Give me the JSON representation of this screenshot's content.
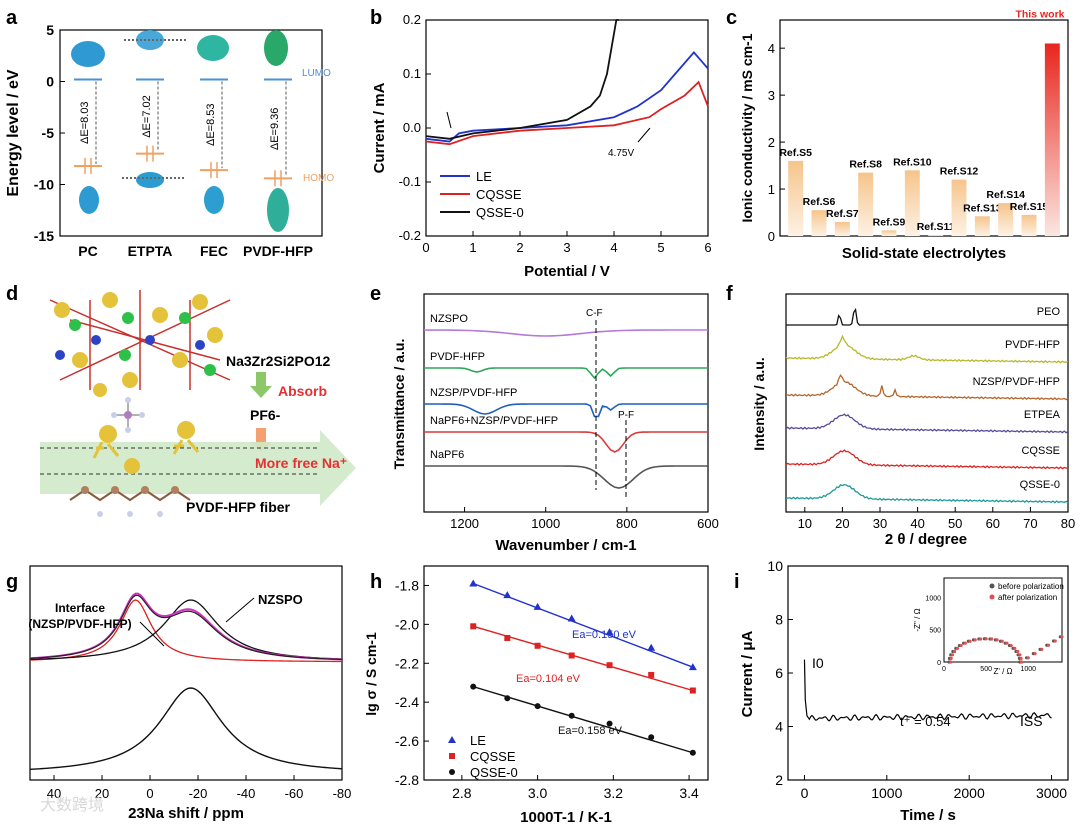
{
  "panels": {
    "a": "a",
    "b": "b",
    "c": "c",
    "d": "d",
    "e": "e",
    "f": "f",
    "g": "g",
    "h": "h",
    "i": "i"
  },
  "colors": {
    "lumo": "#4a8fd8",
    "homo": "#f0a060",
    "le": "#2233cc",
    "cqsse": "#dd2222",
    "qsse": "#111111",
    "bar": "#f6c48c",
    "bar_top": "#e8261e"
  },
  "chart_data": [
    {
      "panel": "a",
      "type": "scatter",
      "ylabel": "Energy level / eV",
      "ylim": [
        -15,
        5
      ],
      "yticks": [
        "5",
        "0",
        "-5",
        "-10",
        "-15"
      ],
      "categories": [
        "PC",
        "ETPTA",
        "FEC",
        "PVDF-HFP"
      ],
      "lumo": [
        0.2,
        0.2,
        0.2,
        0.2
      ],
      "homo": [
        -8.2,
        -7.0,
        -8.6,
        -9.4
      ],
      "gaps": [
        "ΔE=8.03",
        "ΔE=7.02",
        "ΔE=8.53",
        "ΔE=9.36"
      ],
      "lumo_label": "LUMO",
      "homo_label": "HOMO"
    },
    {
      "panel": "b",
      "type": "line",
      "xlabel": "Potential / V",
      "ylabel": "Current / mA",
      "xlim": [
        0,
        6
      ],
      "ylim": [
        -0.2,
        0.2
      ],
      "xticks": [
        "0",
        "1",
        "2",
        "3",
        "4",
        "5",
        "6"
      ],
      "yticks": [
        "0.2",
        "0.1",
        "0.0",
        "-0.1",
        "-0.2"
      ],
      "series": [
        {
          "name": "LE",
          "x": [
            0,
            0.5,
            0.7,
            1,
            2,
            3,
            4,
            4.5,
            5,
            5.3,
            5.7,
            5.9,
            6
          ],
          "y": [
            -0.02,
            -0.025,
            -0.01,
            -0.005,
            0.0,
            0.005,
            0.02,
            0.04,
            0.07,
            0.1,
            0.14,
            0.12,
            0.11
          ]
        },
        {
          "name": "CQSSE",
          "x": [
            0,
            0.5,
            1,
            2,
            3,
            4,
            4.5,
            4.75,
            5,
            5.5,
            5.8,
            6
          ],
          "y": [
            -0.025,
            -0.03,
            -0.015,
            -0.005,
            0.0,
            0.005,
            0.015,
            0.02,
            0.035,
            0.06,
            0.085,
            0.04
          ]
        },
        {
          "name": "QSSE-0",
          "x": [
            0,
            0.5,
            1,
            2,
            3,
            3.5,
            3.7,
            3.85,
            3.95,
            4.05,
            4.1
          ],
          "y": [
            -0.015,
            -0.02,
            -0.01,
            0.0,
            0.015,
            0.04,
            0.06,
            0.1,
            0.15,
            0.2,
            0.22
          ]
        }
      ],
      "annotation": "4.75V"
    },
    {
      "panel": "c",
      "type": "bar",
      "xlabel": "Solid-state electrolytes",
      "ylabel": "Ionic conductivity / mS cm-1",
      "ylim": [
        0,
        4.6
      ],
      "yticks": [
        "0",
        "1",
        "2",
        "3",
        "4"
      ],
      "categories": [
        "Ref.S5",
        "Ref.S6",
        "Ref.S7",
        "Ref.S8",
        "Ref.S9",
        "Ref.S10",
        "Ref.S11",
        "Ref.S12",
        "Ref.S13",
        "Ref.S14",
        "Ref.S15",
        "This work"
      ],
      "values": [
        1.6,
        0.55,
        0.3,
        1.35,
        0.12,
        1.4,
        0.02,
        1.2,
        0.42,
        0.7,
        0.45,
        4.1
      ]
    },
    {
      "panel": "e",
      "type": "line",
      "xlabel": "Wavenumber / cm-1",
      "ylabel": "Transmittance / a.u.",
      "xlim": [
        1300,
        600
      ],
      "xticks": [
        "1200",
        "1000",
        "800",
        "600"
      ],
      "series": [
        {
          "name": "NZSPO"
        },
        {
          "name": "PVDF-HFP"
        },
        {
          "name": "NZSP/PVDF-HFP"
        },
        {
          "name": "NaPF6+NZSP/PVDF-HFP"
        },
        {
          "name": "NaPF6"
        }
      ],
      "markers": [
        "C-F",
        "P-F"
      ]
    },
    {
      "panel": "f",
      "type": "line",
      "xlabel": "2 θ / degree",
      "ylabel": "Intensity / a.u.",
      "xlim": [
        5,
        80
      ],
      "xticks": [
        "10",
        "20",
        "30",
        "40",
        "50",
        "60",
        "70",
        "80"
      ],
      "series": [
        {
          "name": "PEO"
        },
        {
          "name": "PVDF-HFP"
        },
        {
          "name": "NZSP/PVDF-HFP"
        },
        {
          "name": "ETPEA"
        },
        {
          "name": "CQSSE"
        },
        {
          "name": "QSSE-0"
        }
      ]
    },
    {
      "panel": "g",
      "type": "line",
      "xlabel": "23Na shift / ppm",
      "xlim": [
        50,
        -80
      ],
      "xticks": [
        "40",
        "20",
        "0",
        "-20",
        "-40",
        "-60",
        "-80"
      ],
      "labels": [
        "Interface",
        "(NZSP/PVDF-HFP)",
        "NZSPO"
      ]
    },
    {
      "panel": "h",
      "type": "scatter",
      "xlabel": "1000T-1 / K-1",
      "ylabel": "lg σ / S cm-1",
      "xlim": [
        2.7,
        3.45
      ],
      "ylim": [
        -2.8,
        -1.7
      ],
      "xticks": [
        "2.8",
        "3.0",
        "3.2",
        "3.4"
      ],
      "yticks": [
        "-1.8",
        "-2.0",
        "-2.2",
        "-2.4",
        "-2.6",
        "-2.8"
      ],
      "x": [
        2.83,
        2.92,
        3.0,
        3.09,
        3.19,
        3.3,
        3.41
      ],
      "series": [
        {
          "name": "LE",
          "values": [
            -1.79,
            -1.85,
            -1.91,
            -1.97,
            -2.04,
            -2.12,
            -2.22
          ],
          "ea": "Ea=0.150 eV"
        },
        {
          "name": "CQSSE",
          "values": [
            -2.01,
            -2.07,
            -2.11,
            -2.16,
            -2.21,
            -2.26,
            -2.34
          ],
          "ea": "Ea=0.104 eV"
        },
        {
          "name": "QSSE-0",
          "values": [
            -2.32,
            -2.38,
            -2.42,
            -2.47,
            -2.51,
            -2.58,
            -2.66
          ],
          "ea": "Ea=0.158 eV"
        }
      ]
    },
    {
      "panel": "i",
      "type": "line",
      "xlabel": "Time / s",
      "ylabel": "Current / μA",
      "xlim": [
        -200,
        3200
      ],
      "ylim": [
        2,
        10
      ],
      "xticks": [
        "0",
        "1000",
        "2000",
        "3000"
      ],
      "yticks": [
        "10",
        "8",
        "6",
        "4",
        "2"
      ],
      "labels": [
        "I0",
        "ISS",
        "t⁺ = 0.54"
      ],
      "inset": {
        "xlabel": "Z' / Ω",
        "ylabel": "-Z'' / Ω",
        "xticks": [
          "0",
          "500",
          "1000"
        ],
        "yticks": [
          "1000",
          "500",
          "0"
        ],
        "legend": [
          "before polarization",
          "after polarization"
        ]
      }
    }
  ],
  "diagram_d": {
    "formula": "Na3Zr2Si2PO12",
    "absorb": "Absorb",
    "anion": "PF6-",
    "free": "More free Na⁺",
    "fiber": "PVDF-HFP fiber"
  },
  "watermark": "大数跨境"
}
